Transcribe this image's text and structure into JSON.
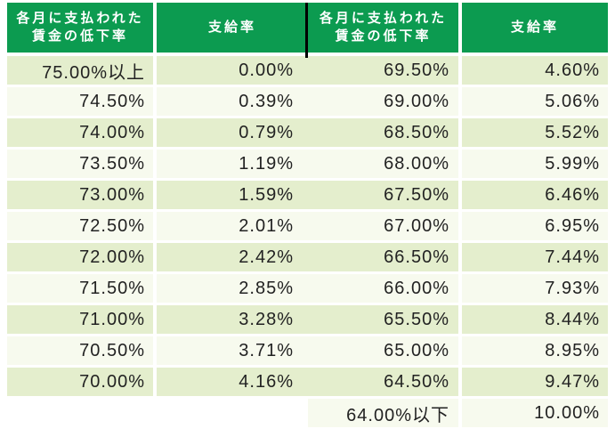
{
  "header": {
    "decrease_line1": "各月に支払われた",
    "decrease_line2": "賃金の低下率",
    "rate": "支給率"
  },
  "rows": [
    {
      "left_decrease": "75.00%以上",
      "left_rate": "0.00%",
      "right_decrease": "69.50%",
      "right_rate": "4.60%"
    },
    {
      "left_decrease": "74.50%",
      "left_rate": "0.39%",
      "right_decrease": "69.00%",
      "right_rate": "5.06%"
    },
    {
      "left_decrease": "74.00%",
      "left_rate": "0.79%",
      "right_decrease": "68.50%",
      "right_rate": "5.52%"
    },
    {
      "left_decrease": "73.50%",
      "left_rate": "1.19%",
      "right_decrease": "68.00%",
      "right_rate": "5.99%"
    },
    {
      "left_decrease": "73.00%",
      "left_rate": "1.59%",
      "right_decrease": "67.50%",
      "right_rate": "6.46%"
    },
    {
      "left_decrease": "72.50%",
      "left_rate": "2.01%",
      "right_decrease": "67.00%",
      "right_rate": "6.95%"
    },
    {
      "left_decrease": "72.00%",
      "left_rate": "2.42%",
      "right_decrease": "66.50%",
      "right_rate": "7.44%"
    },
    {
      "left_decrease": "71.50%",
      "left_rate": "2.85%",
      "right_decrease": "66.00%",
      "right_rate": "7.93%"
    },
    {
      "left_decrease": "71.00%",
      "left_rate": "3.28%",
      "right_decrease": "65.50%",
      "right_rate": "8.44%"
    },
    {
      "left_decrease": "70.50%",
      "left_rate": "3.71%",
      "right_decrease": "65.00%",
      "right_rate": "8.95%"
    },
    {
      "left_decrease": "70.00%",
      "left_rate": "4.16%",
      "right_decrease": "64.50%",
      "right_rate": "9.47%"
    },
    {
      "left_decrease": "",
      "left_rate": "",
      "right_decrease": "64.00%以下",
      "right_rate": "10.00%"
    }
  ],
  "colors": {
    "header_bg": "#0c9b50",
    "header_text": "#ffffff",
    "row_green": "#e4eecd",
    "row_pale": "#f7faee",
    "divider": "#000000",
    "body_text": "#222222"
  }
}
